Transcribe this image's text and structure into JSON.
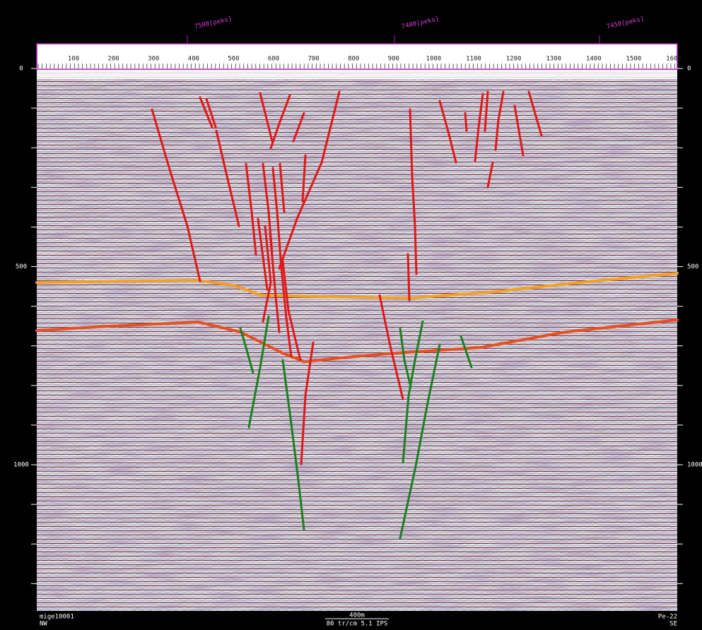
{
  "top_axis": {
    "ticks": [
      "100",
      "200",
      "300",
      "400",
      "500",
      "600",
      "700",
      "800",
      "900",
      "1000",
      "1100",
      "1200",
      "1300",
      "1400",
      "1500",
      "1600"
    ],
    "markers": [
      "7500[peks]",
      "7400[peks]",
      "7450[peks]"
    ]
  },
  "left_axis": {
    "labels": [
      "0",
      "500",
      "1000"
    ]
  },
  "right_axis": {
    "labels": [
      "0",
      "500",
      "1000"
    ]
  },
  "footer": {
    "left_line1": "mige10001",
    "left_line2": "NW",
    "scale": "400m",
    "scale_note": "80 tr/cm 5.1 IPS",
    "right_line1": "Pe-22",
    "right_line2": "SE"
  }
}
